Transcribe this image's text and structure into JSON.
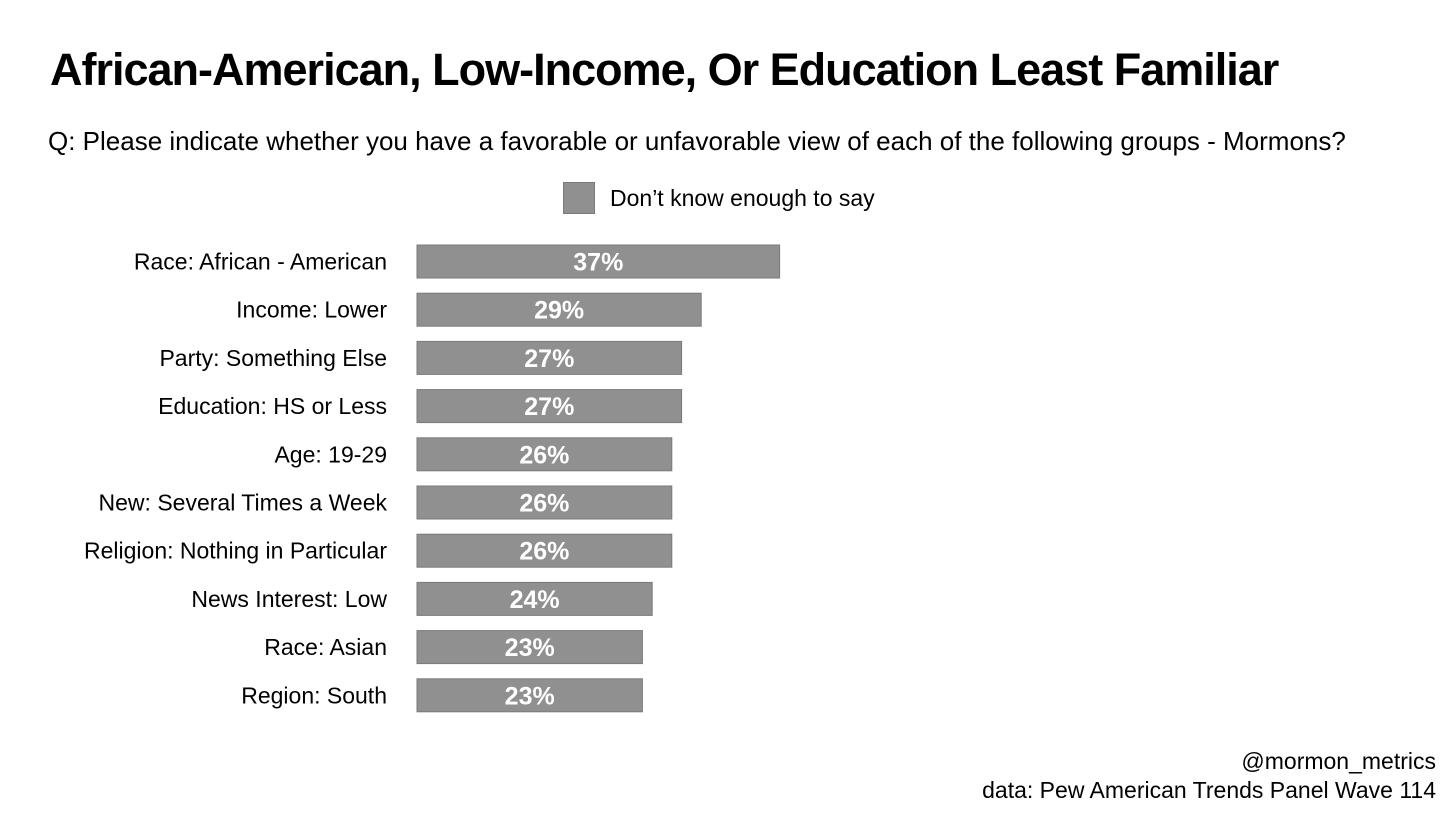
{
  "title": "African-American, Low-Income, Or Education Least Familiar",
  "subtitle": "Q: Please indicate whether you have a favorable or unfavorable view of each of the following groups - Mormons?",
  "legend": {
    "label": "Don’t know enough to say",
    "color": "#909090"
  },
  "chart_data": {
    "type": "bar",
    "orientation": "horizontal",
    "title": "African-American, Low-Income, Or Education Least Familiar",
    "series": [
      {
        "name": "Don’t know enough to say",
        "color": "#909090",
        "values": [
          37,
          29,
          27,
          27,
          26,
          26,
          26,
          24,
          23,
          23
        ]
      }
    ],
    "categories": [
      "Race: African - American",
      "Income: Lower",
      "Party: Something Else",
      "Education: HS or Less",
      "Age: 19-29",
      "New: Several Times a Week",
      "Religion: Nothing in Particular",
      "News Interest: Low",
      "Race: Asian",
      "Region: South"
    ],
    "value_labels": [
      "37%",
      "29%",
      "27%",
      "27%",
      "26%",
      "26%",
      "26%",
      "24%",
      "23%",
      "23%"
    ],
    "value_unit": "%",
    "xlim": [
      0,
      100
    ],
    "grid": false,
    "xlabel": "",
    "ylabel": "",
    "legend_position": "top"
  },
  "footer": {
    "handle": "@mormon_metrics",
    "source": "data: Pew American Trends Panel Wave 114"
  }
}
